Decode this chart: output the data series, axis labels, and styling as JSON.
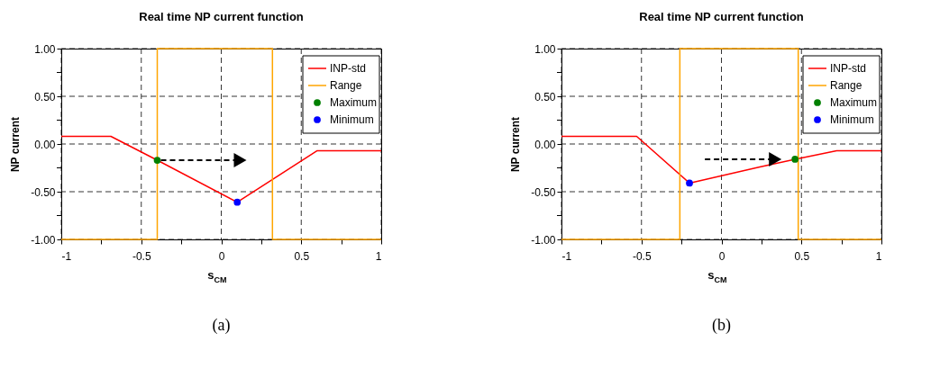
{
  "chart_data": [
    {
      "type": "line",
      "title": "Real time NP current function",
      "xlabel": "s$_{CM}$",
      "ylabel": "NP current",
      "legend": "top right",
      "grid": true,
      "line_style": "solid",
      "marker": "none",
      "xlim": [
        -1,
        1
      ],
      "ylim": [
        -1,
        1
      ],
      "xticks": [
        -1,
        {
          "value": -0.75,
          "label": null
        },
        -0.5,
        {
          "value": -0.25,
          "label": null
        },
        0,
        {
          "value": 0.25,
          "label": null
        },
        0.5,
        {
          "value": 0.75,
          "label": null
        },
        1
      ],
      "yticks": [
        {
          "value": -1,
          "label": "-1.00"
        },
        {
          "value": -0.75,
          "label": null
        },
        {
          "value": -0.5,
          "label": "-0.50"
        },
        {
          "value": -0.25,
          "label": null
        },
        {
          "value": 0,
          "label": "0.00"
        },
        {
          "value": 0.25,
          "label": null
        },
        {
          "value": 0.5,
          "label": "0.50"
        },
        {
          "value": 0.75,
          "label": null
        },
        {
          "value": 1,
          "label": "1.00"
        }
      ],
      "annotations": [
        "(a)"
      ],
      "series": [
        {
          "name": "INP-std",
          "color": "#ff0000",
          "x": [
            -1,
            -0.69,
            -0.4,
            0.1,
            0.6,
            1
          ],
          "values": [
            0.08,
            0.08,
            -0.17,
            -0.61,
            -0.07,
            -0.07
          ]
        },
        {
          "name": "Range",
          "color": "#ffa500",
          "x": [
            -1,
            -0.4,
            -0.4,
            0.32,
            0.32,
            1
          ],
          "values": [
            -1,
            -1,
            1,
            1,
            -1,
            -1
          ]
        },
        {
          "name": "Maximum",
          "type": "scatter",
          "marker": "circle",
          "color": "#008000",
          "x": [
            -0.4
          ],
          "values": [
            -0.17
          ]
        },
        {
          "name": "Minimum",
          "type": "scatter",
          "marker": "circle",
          "color": "#0000ff",
          "x": [
            0.1
          ],
          "values": [
            -0.61
          ]
        }
      ]
    },
    {
      "type": "line",
      "title": "Real time NP current function",
      "xlabel": "s$_{CM}$",
      "ylabel": "NP current",
      "legend": "top right",
      "grid": true,
      "line_style": "solid",
      "marker": "none",
      "xlim": [
        -1,
        1
      ],
      "ylim": [
        -1,
        1
      ],
      "xticks": [
        -1,
        {
          "value": -0.75,
          "label": null
        },
        -0.5,
        {
          "value": -0.25,
          "label": null
        },
        0,
        {
          "value": 0.25,
          "label": null
        },
        0.5,
        {
          "value": 0.75,
          "label": null
        },
        1
      ],
      "yticks": [
        {
          "value": -1,
          "label": "-1.00"
        },
        {
          "value": -0.75,
          "label": null
        },
        {
          "value": -0.5,
          "label": "-0.50"
        },
        {
          "value": -0.25,
          "label": null
        },
        {
          "value": 0,
          "label": "0.00"
        },
        {
          "value": 0.25,
          "label": null
        },
        {
          "value": 0.5,
          "label": "0.50"
        },
        {
          "value": 0.75,
          "label": null
        },
        {
          "value": 1,
          "label": "1.00"
        }
      ],
      "annotations": [
        "(b)"
      ],
      "series": [
        {
          "name": "INP-std",
          "color": "#ff0000",
          "x": [
            -1,
            -0.53,
            -0.2,
            0.24,
            0.46,
            0.72,
            1
          ],
          "values": [
            0.08,
            0.08,
            -0.41,
            -0.24,
            -0.16,
            -0.07,
            -0.07
          ]
        },
        {
          "name": "Range",
          "color": "#ffa500",
          "x": [
            -1,
            -0.26,
            -0.26,
            0.48,
            0.48,
            1
          ],
          "values": [
            -1,
            -1,
            1,
            1,
            -1,
            -1
          ]
        },
        {
          "name": "Maximum",
          "type": "scatter",
          "marker": "circle",
          "color": "#008000",
          "x": [
            0.46
          ],
          "values": [
            -0.16
          ]
        },
        {
          "name": "Minimum",
          "type": "scatter",
          "marker": "circle",
          "color": "#0000ff",
          "x": [
            -0.2
          ],
          "values": [
            -0.41
          ]
        }
      ]
    }
  ]
}
